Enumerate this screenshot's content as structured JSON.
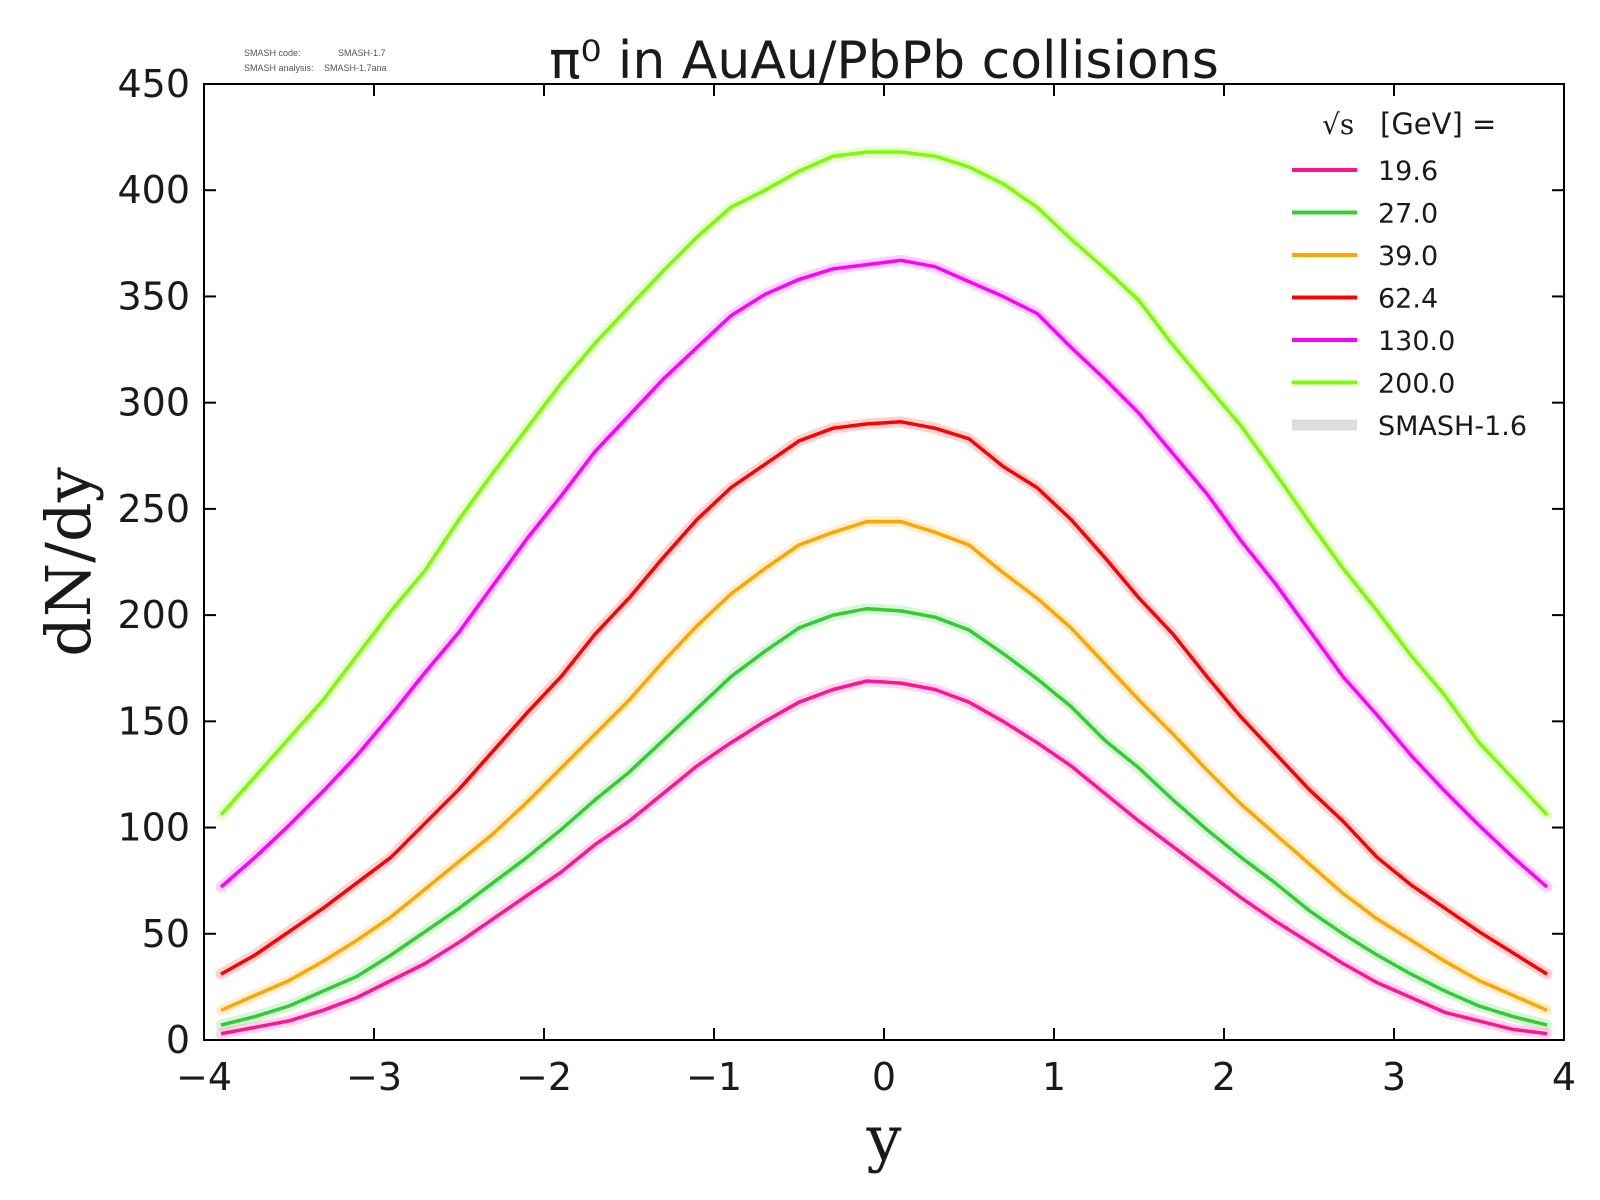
{
  "chart_data": {
    "type": "line",
    "title": "π⁰ in AuAu/PbPb collisions",
    "xlabel": "y",
    "ylabel": "dN/dy",
    "xlim": [
      -4,
      4
    ],
    "ylim": [
      0,
      450
    ],
    "xticks": [
      -4,
      -3,
      -2,
      -1,
      0,
      1,
      2,
      3,
      4
    ],
    "xtick_labels": [
      "−4",
      "−3",
      "−2",
      "−1",
      "0",
      "1",
      "2",
      "3",
      "4"
    ],
    "yticks": [
      0,
      50,
      100,
      150,
      200,
      250,
      300,
      350,
      400,
      450
    ],
    "ytick_labels": [
      "0",
      "50",
      "100",
      "150",
      "200",
      "250",
      "300",
      "350",
      "400",
      "450"
    ],
    "legend_title_sqrt": "√s",
    "legend_title_rest": "[GeV] =",
    "legend_position": "top-right",
    "x": [
      -3.9,
      -3.7,
      -3.5,
      -3.3,
      -3.1,
      -2.9,
      -2.7,
      -2.5,
      -2.3,
      -2.1,
      -1.9,
      -1.7,
      -1.5,
      -1.3,
      -1.1,
      -0.9,
      -0.7,
      -0.5,
      -0.3,
      -0.1,
      0.1,
      0.3,
      0.5,
      0.7,
      0.9,
      1.1,
      1.3,
      1.5,
      1.7,
      1.9,
      2.1,
      2.3,
      2.5,
      2.7,
      2.9,
      3.1,
      3.3,
      3.5,
      3.7,
      3.9
    ],
    "series": [
      {
        "name": "19.6",
        "color": "#ff1493",
        "values": [
          3,
          6,
          9,
          14,
          20,
          28,
          36,
          46,
          57,
          68,
          79,
          92,
          103,
          116,
          129,
          140,
          150,
          159,
          165,
          169,
          168,
          165,
          159,
          150,
          140,
          129,
          116,
          103,
          91,
          79,
          67,
          56,
          46,
          36,
          27,
          20,
          13,
          9,
          5,
          3
        ]
      },
      {
        "name": "27.0",
        "color": "#32cd32",
        "values": [
          7,
          11,
          16,
          23,
          30,
          40,
          51,
          62,
          74,
          86,
          99,
          113,
          126,
          141,
          156,
          171,
          183,
          194,
          200,
          203,
          202,
          199,
          193,
          182,
          170,
          157,
          141,
          128,
          113,
          99,
          86,
          74,
          61,
          50,
          40,
          31,
          23,
          16,
          11,
          7
        ]
      },
      {
        "name": "39.0",
        "color": "#ffa500",
        "values": [
          14,
          21,
          28,
          37,
          47,
          58,
          71,
          84,
          97,
          112,
          128,
          144,
          160,
          178,
          195,
          210,
          222,
          233,
          239,
          244,
          244,
          239,
          233,
          220,
          208,
          194,
          177,
          160,
          144,
          127,
          111,
          97,
          83,
          69,
          57,
          47,
          37,
          28,
          21,
          14
        ]
      },
      {
        "name": "62.4",
        "color": "#ff0000",
        "values": [
          31,
          40,
          51,
          62,
          74,
          86,
          102,
          118,
          136,
          154,
          171,
          191,
          208,
          227,
          245,
          260,
          271,
          282,
          288,
          290,
          291,
          288,
          283,
          270,
          260,
          245,
          227,
          208,
          191,
          171,
          152,
          135,
          118,
          103,
          86,
          73,
          62,
          51,
          41,
          31
        ]
      },
      {
        "name": "130.0",
        "color": "#ff00ff",
        "values": [
          72,
          86,
          101,
          117,
          134,
          153,
          173,
          192,
          214,
          236,
          256,
          277,
          294,
          311,
          326,
          341,
          351,
          358,
          363,
          365,
          367,
          364,
          357,
          350,
          342,
          326,
          311,
          295,
          276,
          257,
          235,
          215,
          193,
          171,
          153,
          134,
          117,
          101,
          86,
          72
        ]
      },
      {
        "name": "200.0",
        "color": "#7cfc00",
        "values": [
          106,
          124,
          142,
          160,
          181,
          202,
          221,
          245,
          267,
          288,
          309,
          328,
          345,
          362,
          378,
          392,
          400,
          409,
          416,
          418,
          418,
          416,
          411,
          403,
          392,
          377,
          363,
          348,
          327,
          308,
          289,
          267,
          244,
          222,
          202,
          181,
          162,
          140,
          123,
          106
        ]
      },
      {
        "name": "SMASH-1.6",
        "color": "#d3d3d3",
        "reference_band": true
      }
    ]
  },
  "version_info": {
    "code_label": "SMASH code:",
    "code_value": "SMASH-1.7",
    "analysis_label": "SMASH analysis:",
    "analysis_value": "SMASH-1.7ana"
  }
}
